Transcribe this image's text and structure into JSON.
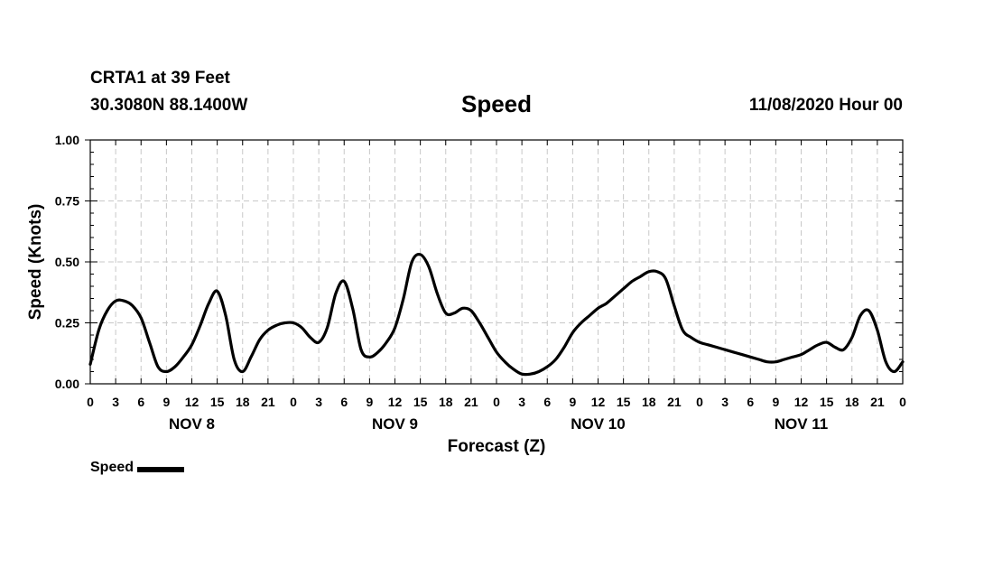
{
  "header": {
    "station": "CRTA1 at 39 Feet",
    "coords": "30.3080N 88.1400W",
    "title": "Speed",
    "datetime": "11/08/2020 Hour 00"
  },
  "legend": {
    "label": "Speed",
    "color": "#000000"
  },
  "chart_data": {
    "type": "line",
    "title": "Speed",
    "xlabel": "Forecast (Z)",
    "ylabel": "Speed (Knots)",
    "xlim": [
      0,
      96
    ],
    "ylim": [
      0,
      1
    ],
    "y_ticks": [
      "0.00",
      "0.25",
      "0.50",
      "0.75",
      "1.00"
    ],
    "y_tick_values": [
      0,
      0.25,
      0.5,
      0.75,
      1.0
    ],
    "x_tick_labels": [
      "0",
      "3",
      "6",
      "9",
      "12",
      "15",
      "18",
      "21",
      "0",
      "3",
      "6",
      "9",
      "12",
      "15",
      "18",
      "21",
      "0",
      "3",
      "6",
      "9",
      "12",
      "15",
      "18",
      "21",
      "0",
      "3",
      "6",
      "9",
      "12",
      "15",
      "18",
      "21",
      "0"
    ],
    "day_labels": [
      {
        "label": "NOV 8",
        "hour": 12
      },
      {
        "label": "NOV 9",
        "hour": 36
      },
      {
        "label": "NOV 10",
        "hour": 60
      },
      {
        "label": "NOV 11",
        "hour": 84
      }
    ],
    "grid": true,
    "series": [
      {
        "name": "Speed",
        "color": "#000000",
        "x": [
          0,
          1,
          2,
          3,
          4,
          5,
          6,
          7,
          8,
          9,
          10,
          11,
          12,
          13,
          14,
          15,
          16,
          17,
          18,
          19,
          20,
          21,
          22,
          23,
          24,
          25,
          26,
          27,
          28,
          29,
          30,
          31,
          32,
          33,
          34,
          35,
          36,
          37,
          38,
          39,
          40,
          41,
          42,
          43,
          44,
          45,
          46,
          47,
          48,
          49,
          50,
          51,
          52,
          53,
          54,
          55,
          56,
          57,
          58,
          59,
          60,
          61,
          62,
          63,
          64,
          65,
          66,
          67,
          68,
          69,
          70,
          71,
          72,
          73,
          74,
          75,
          76,
          77,
          78,
          79,
          80,
          81,
          82,
          83,
          84,
          85,
          86,
          87,
          88,
          89,
          90,
          91,
          92,
          93,
          94,
          95,
          96
        ],
        "values": [
          0.08,
          0.22,
          0.3,
          0.34,
          0.34,
          0.32,
          0.27,
          0.17,
          0.07,
          0.05,
          0.07,
          0.11,
          0.16,
          0.24,
          0.33,
          0.38,
          0.28,
          0.1,
          0.05,
          0.11,
          0.18,
          0.22,
          0.24,
          0.25,
          0.25,
          0.23,
          0.19,
          0.17,
          0.23,
          0.37,
          0.42,
          0.31,
          0.14,
          0.11,
          0.13,
          0.17,
          0.23,
          0.35,
          0.5,
          0.53,
          0.48,
          0.37,
          0.29,
          0.29,
          0.31,
          0.3,
          0.25,
          0.19,
          0.13,
          0.09,
          0.06,
          0.04,
          0.04,
          0.05,
          0.07,
          0.1,
          0.15,
          0.21,
          0.25,
          0.28,
          0.31,
          0.33,
          0.36,
          0.39,
          0.42,
          0.44,
          0.46,
          0.46,
          0.43,
          0.32,
          0.22,
          0.19,
          0.17,
          0.16,
          0.15,
          0.14,
          0.13,
          0.12,
          0.11,
          0.1,
          0.09,
          0.09,
          0.1,
          0.11,
          0.12,
          0.14,
          0.16,
          0.17,
          0.15,
          0.14,
          0.19,
          0.28,
          0.3,
          0.22,
          0.09,
          0.05,
          0.09
        ]
      }
    ]
  }
}
